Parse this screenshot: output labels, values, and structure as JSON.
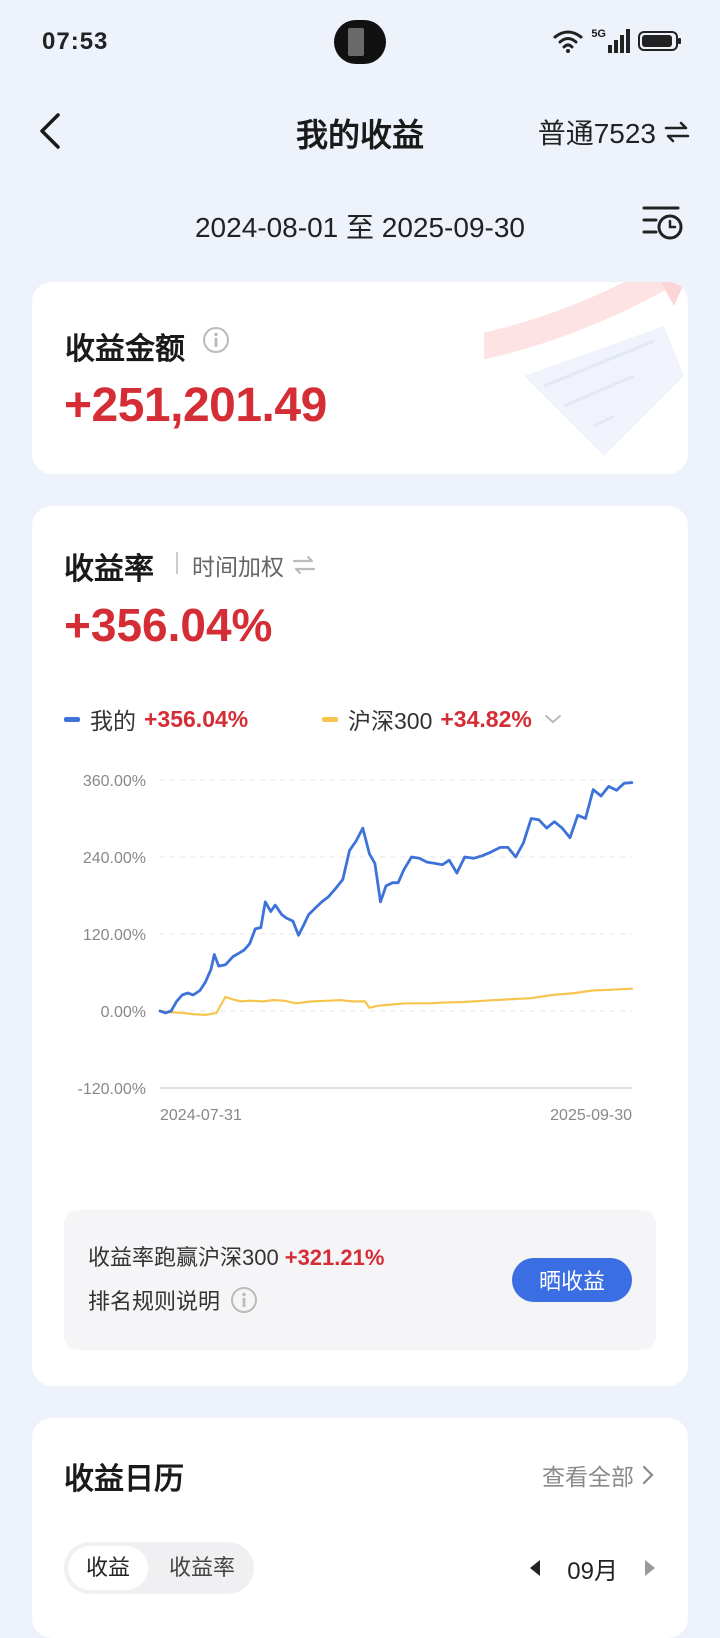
{
  "status_bar": {
    "time": "07:53",
    "network": "5G"
  },
  "nav": {
    "title": "我的收益",
    "account": "普通7523"
  },
  "date_range": "2024-08-01 至 2025-09-30",
  "profit_card": {
    "label": "收益金额",
    "amount": "+251,201.49"
  },
  "rate_card": {
    "label": "收益率",
    "mode": "时间加权",
    "rate": "+356.04%",
    "legend": [
      {
        "name": "我的",
        "value": "+356.04%",
        "color": "#3d72d9"
      },
      {
        "name": "沪深300",
        "value": "+34.82%",
        "color": "#f6c54e"
      }
    ],
    "compare_text": "收益率跑赢沪深300",
    "compare_value": "+321.21%",
    "rule_text": "排名规则说明",
    "share_button": "晒收益"
  },
  "chart_data": {
    "type": "line",
    "x_start": "2024-07-31",
    "x_end": "2025-09-30",
    "x_ticks": [
      "2024-07-31",
      "2025-09-30"
    ],
    "y_ticks": [
      "360.00%",
      "240.00%",
      "120.00%",
      "0.00%",
      "-120.00%"
    ],
    "ylim": [
      -120,
      360
    ],
    "grid": true,
    "series": [
      {
        "name": "我的",
        "color": "#3d72d9",
        "points": [
          [
            "2024-07-31",
            0
          ],
          [
            "2024-08-05",
            -3
          ],
          [
            "2024-08-10",
            0
          ],
          [
            "2024-08-15",
            15
          ],
          [
            "2024-08-20",
            25
          ],
          [
            "2024-08-25",
            28
          ],
          [
            "2024-08-30",
            25
          ],
          [
            "2024-09-05",
            32
          ],
          [
            "2024-09-10",
            45
          ],
          [
            "2024-09-15",
            65
          ],
          [
            "2024-09-18",
            88
          ],
          [
            "2024-09-22",
            70
          ],
          [
            "2024-09-28",
            72
          ],
          [
            "2024-10-05",
            85
          ],
          [
            "2024-10-10",
            90
          ],
          [
            "2024-10-15",
            95
          ],
          [
            "2024-10-20",
            105
          ],
          [
            "2024-10-25",
            128
          ],
          [
            "2024-10-30",
            130
          ],
          [
            "2024-11-03",
            170
          ],
          [
            "2024-11-08",
            155
          ],
          [
            "2024-11-12",
            165
          ],
          [
            "2024-11-18",
            150
          ],
          [
            "2024-11-22",
            145
          ],
          [
            "2024-11-28",
            140
          ],
          [
            "2024-12-03",
            118
          ],
          [
            "2024-12-08",
            135
          ],
          [
            "2024-12-12",
            150
          ],
          [
            "2024-12-18",
            160
          ],
          [
            "2024-12-24",
            170
          ],
          [
            "2024-12-30",
            178
          ],
          [
            "2025-01-06",
            192
          ],
          [
            "2025-01-12",
            205
          ],
          [
            "2025-01-18",
            250
          ],
          [
            "2025-01-24",
            265
          ],
          [
            "2025-01-30",
            285
          ],
          [
            "2025-02-05",
            245
          ],
          [
            "2025-02-10",
            230
          ],
          [
            "2025-02-15",
            170
          ],
          [
            "2025-02-20",
            195
          ],
          [
            "2025-02-26",
            200
          ],
          [
            "2025-03-03",
            200
          ],
          [
            "2025-03-08",
            220
          ],
          [
            "2025-03-15",
            240
          ],
          [
            "2025-03-22",
            238
          ],
          [
            "2025-03-29",
            232
          ],
          [
            "2025-04-05",
            230
          ],
          [
            "2025-04-12",
            228
          ],
          [
            "2025-04-18",
            235
          ],
          [
            "2025-04-25",
            215
          ],
          [
            "2025-05-02",
            240
          ],
          [
            "2025-05-10",
            238
          ],
          [
            "2025-05-18",
            242
          ],
          [
            "2025-05-26",
            248
          ],
          [
            "2025-06-03",
            255
          ],
          [
            "2025-06-10",
            255
          ],
          [
            "2025-06-17",
            240
          ],
          [
            "2025-06-24",
            262
          ],
          [
            "2025-07-01",
            300
          ],
          [
            "2025-07-08",
            298
          ],
          [
            "2025-07-15",
            285
          ],
          [
            "2025-07-22",
            295
          ],
          [
            "2025-07-29",
            285
          ],
          [
            "2025-08-05",
            270
          ],
          [
            "2025-08-12",
            305
          ],
          [
            "2025-08-19",
            300
          ],
          [
            "2025-08-26",
            345
          ],
          [
            "2025-09-02",
            335
          ],
          [
            "2025-09-09",
            350
          ],
          [
            "2025-09-16",
            344
          ],
          [
            "2025-09-23",
            355
          ],
          [
            "2025-09-30",
            356
          ]
        ]
      },
      {
        "name": "沪深300",
        "color": "#f6c54e",
        "points": [
          [
            "2024-07-31",
            0
          ],
          [
            "2024-08-10",
            -2
          ],
          [
            "2024-08-20",
            -3
          ],
          [
            "2024-08-30",
            -5
          ],
          [
            "2024-09-10",
            -6
          ],
          [
            "2024-09-20",
            -3
          ],
          [
            "2024-09-28",
            22
          ],
          [
            "2024-10-05",
            18
          ],
          [
            "2024-10-12",
            15
          ],
          [
            "2024-10-20",
            16
          ],
          [
            "2024-11-01",
            15
          ],
          [
            "2024-11-10",
            17
          ],
          [
            "2024-11-20",
            16
          ],
          [
            "2024-12-01",
            12
          ],
          [
            "2024-12-15",
            15
          ],
          [
            "2024-12-31",
            16
          ],
          [
            "2025-01-10",
            17
          ],
          [
            "2025-01-20",
            15
          ],
          [
            "2025-02-01",
            15
          ],
          [
            "2025-02-05",
            5
          ],
          [
            "2025-02-12",
            8
          ],
          [
            "2025-02-24",
            10
          ],
          [
            "2025-03-10",
            12
          ],
          [
            "2025-04-01",
            12
          ],
          [
            "2025-04-10",
            13
          ],
          [
            "2025-05-01",
            14
          ],
          [
            "2025-05-20",
            16
          ],
          [
            "2025-06-10",
            18
          ],
          [
            "2025-07-01",
            20
          ],
          [
            "2025-07-20",
            25
          ],
          [
            "2025-08-10",
            28
          ],
          [
            "2025-08-25",
            32
          ],
          [
            "2025-09-10",
            33
          ],
          [
            "2025-09-20",
            34
          ],
          [
            "2025-09-30",
            34.82
          ]
        ]
      }
    ]
  },
  "calendar_card": {
    "label": "收益日历",
    "view_all": "查看全部",
    "tabs": [
      "收益",
      "收益率"
    ],
    "month": "09月"
  }
}
